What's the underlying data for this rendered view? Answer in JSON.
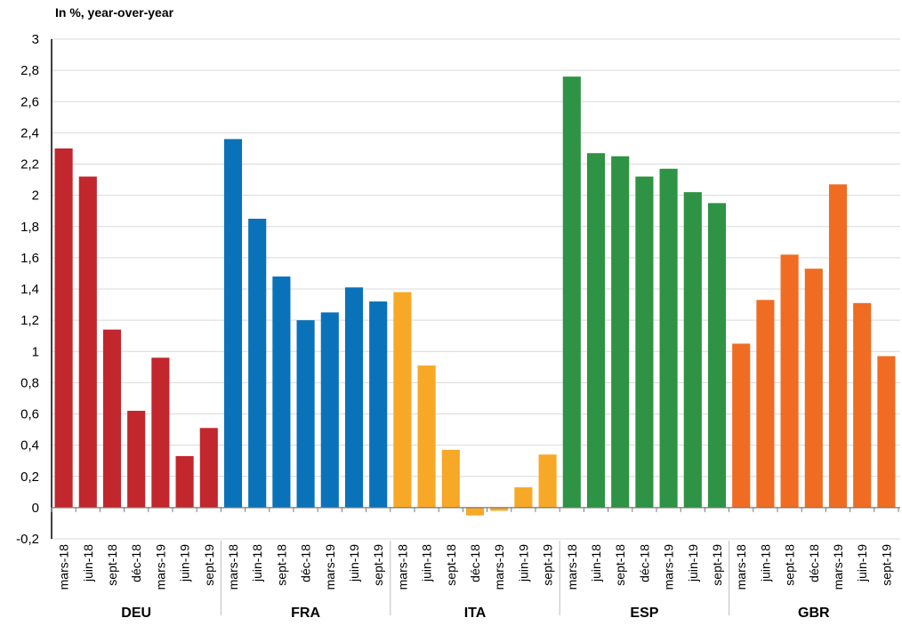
{
  "chart_data": {
    "type": "bar",
    "title": "In %, year-over-year",
    "ylim": [
      -0.2,
      3
    ],
    "yticks": [
      -0.2,
      0,
      0.2,
      0.4,
      0.6,
      0.8,
      1,
      1.2,
      1.4,
      1.6,
      1.8,
      2,
      2.2,
      2.4,
      2.6,
      2.8,
      3
    ],
    "ytick_labels": [
      "-0,2",
      "0",
      "0,2",
      "0,4",
      "0,6",
      "0,8",
      "1",
      "1,2",
      "1,4",
      "1,6",
      "1,8",
      "2",
      "2,2",
      "2,4",
      "2,6",
      "2,8",
      "3"
    ],
    "grid": true,
    "categories": [
      "mars-18",
      "juin-18",
      "sept-18",
      "déc-18",
      "mars-19",
      "juin-19",
      "sept-19"
    ],
    "groups": [
      {
        "name": "DEU",
        "color": "#c1272d",
        "values": [
          2.3,
          2.12,
          1.14,
          0.62,
          0.96,
          0.33,
          0.51
        ]
      },
      {
        "name": "FRA",
        "color": "#0a72b9",
        "values": [
          2.36,
          1.85,
          1.48,
          1.2,
          1.25,
          1.41,
          1.32
        ]
      },
      {
        "name": "ITA",
        "color": "#f7a827",
        "values": [
          1.38,
          0.91,
          0.37,
          -0.05,
          -0.02,
          0.13,
          0.34
        ]
      },
      {
        "name": "ESP",
        "color": "#2e9344",
        "values": [
          2.76,
          2.27,
          2.25,
          2.12,
          2.17,
          2.02,
          1.95
        ]
      },
      {
        "name": "GBR",
        "color": "#f06c23",
        "values": [
          1.05,
          1.33,
          1.62,
          1.53,
          2.07,
          1.31,
          0.97
        ]
      }
    ]
  }
}
